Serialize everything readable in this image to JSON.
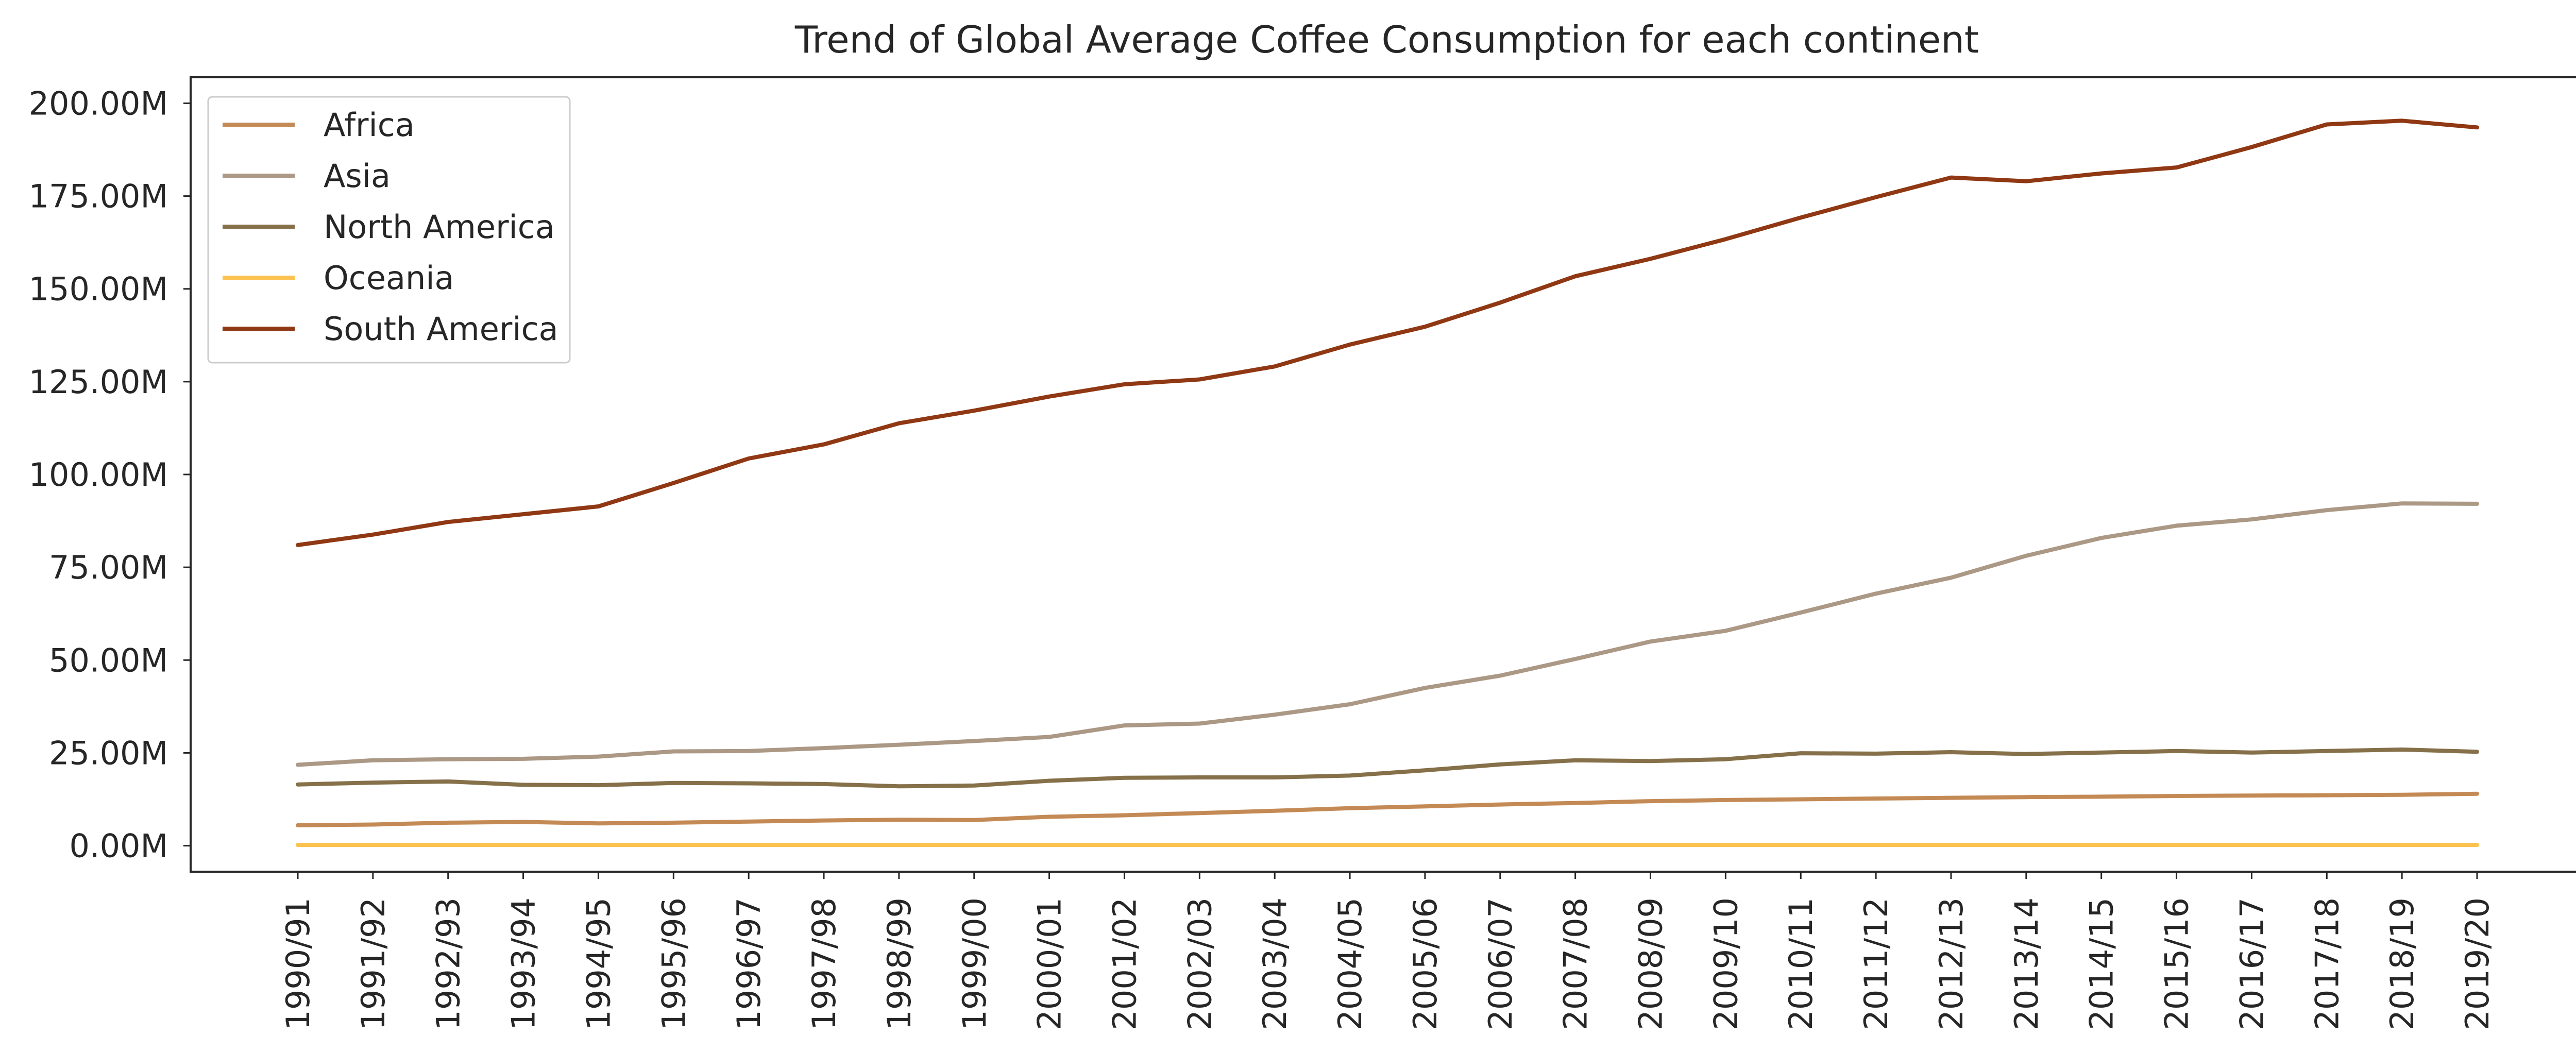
{
  "chart_data": {
    "type": "line",
    "title": "Trend of Global Average Coffee Consumption for each continent",
    "xlabel": "",
    "ylabel": "",
    "ylim": [
      -7000000,
      207000000
    ],
    "y_ticks": [
      0,
      25000000,
      50000000,
      75000000,
      100000000,
      125000000,
      150000000,
      175000000,
      200000000
    ],
    "y_tick_labels": [
      "0.00M",
      "25.00M",
      "50.00M",
      "75.00M",
      "100.00M",
      "125.00M",
      "150.00M",
      "175.00M",
      "200.00M"
    ],
    "grid": false,
    "legend_position": "top-left",
    "categories": [
      "1990/91",
      "1991/92",
      "1992/93",
      "1993/94",
      "1994/95",
      "1995/96",
      "1996/97",
      "1997/98",
      "1998/99",
      "1999/00",
      "2000/01",
      "2001/02",
      "2002/03",
      "2003/04",
      "2004/05",
      "2005/06",
      "2006/07",
      "2007/08",
      "2008/09",
      "2009/10",
      "2010/11",
      "2011/12",
      "2012/13",
      "2013/14",
      "2014/15",
      "2015/16",
      "2016/17",
      "2017/18",
      "2018/19",
      "2019/20"
    ],
    "series": [
      {
        "name": "Africa",
        "color": "#c48a55",
        "values": [
          5500000,
          5700000,
          6200000,
          6400000,
          6000000,
          6200000,
          6500000,
          6800000,
          7000000,
          6900000,
          7800000,
          8200000,
          8800000,
          9400000,
          10100000,
          10600000,
          11100000,
          11500000,
          12000000,
          12300000,
          12500000,
          12700000,
          12900000,
          13100000,
          13200000,
          13400000,
          13500000,
          13600000,
          13700000,
          14000000
        ]
      },
      {
        "name": "Asia",
        "color": "#ab9885",
        "values": [
          21800000,
          23000000,
          23300000,
          23400000,
          24000000,
          25400000,
          25500000,
          26300000,
          27200000,
          28200000,
          29300000,
          32400000,
          32900000,
          35300000,
          38100000,
          42500000,
          45800000,
          50300000,
          55000000,
          57900000,
          62800000,
          67900000,
          72200000,
          78100000,
          82900000,
          86200000,
          87900000,
          90400000,
          92200000,
          92100000
        ]
      },
      {
        "name": "North America",
        "color": "#85704a",
        "values": [
          16500000,
          17000000,
          17300000,
          16400000,
          16300000,
          16900000,
          16800000,
          16600000,
          16000000,
          16200000,
          17500000,
          18300000,
          18400000,
          18400000,
          18900000,
          20300000,
          21900000,
          23000000,
          22800000,
          23300000,
          24900000,
          24800000,
          25200000,
          24700000,
          25100000,
          25500000,
          25100000,
          25500000,
          25900000,
          25300000
        ]
      },
      {
        "name": "Oceania",
        "color": "#fcc24f",
        "values": [
          200000,
          200000,
          200000,
          200000,
          200000,
          200000,
          200000,
          200000,
          200000,
          200000,
          200000,
          200000,
          200000,
          200000,
          200000,
          200000,
          200000,
          200000,
          200000,
          200000,
          200000,
          200000,
          200000,
          200000,
          200000,
          200000,
          200000,
          200000,
          200000,
          200000
        ]
      },
      {
        "name": "South America",
        "color": "#8f3813",
        "values": [
          81000000,
          83800000,
          87200000,
          89300000,
          91400000,
          97700000,
          104300000,
          108100000,
          113800000,
          117200000,
          121000000,
          124300000,
          125600000,
          129100000,
          135000000,
          139800000,
          146300000,
          153400000,
          158100000,
          163400000,
          169200000,
          174700000,
          180000000,
          179000000,
          181100000,
          182700000,
          188200000,
          194300000,
          195300000,
          193500000
        ]
      }
    ]
  }
}
